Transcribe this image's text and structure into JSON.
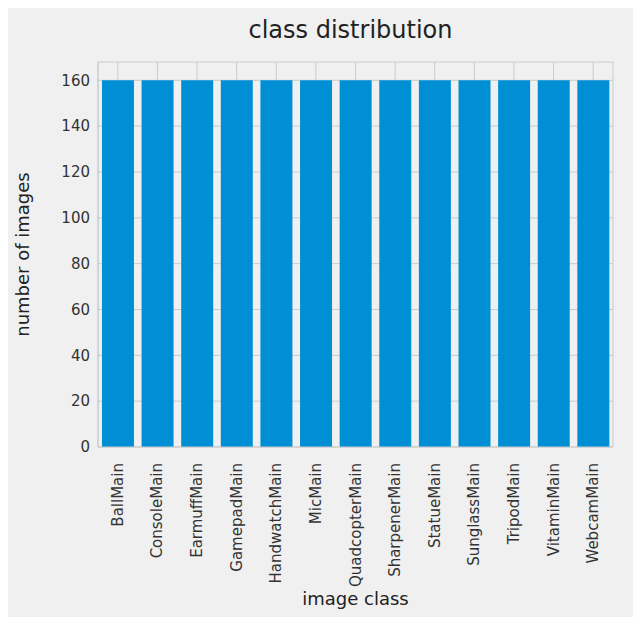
{
  "chart_data": {
    "type": "bar",
    "title": "class distribution",
    "x_label": "image class",
    "y_label": "number of images",
    "categories": [
      "BallMain",
      "ConsoleMain",
      "EarmuffMain",
      "GamepadMain",
      "HandwatchMain",
      "MicMain",
      "QuadcopterMain",
      "SharpenerMain",
      "StatueMain",
      "SunglassMain",
      "TripodMain",
      "VitaminMain",
      "WebcamMain"
    ],
    "values": [
      160,
      160,
      160,
      160,
      160,
      160,
      160,
      160,
      160,
      160,
      160,
      160,
      160
    ],
    "color": "#008fd5",
    "ylim": [
      0,
      168
    ],
    "yticks": [
      0,
      20,
      40,
      60,
      80,
      100,
      120,
      140,
      160
    ],
    "grid": true
  }
}
